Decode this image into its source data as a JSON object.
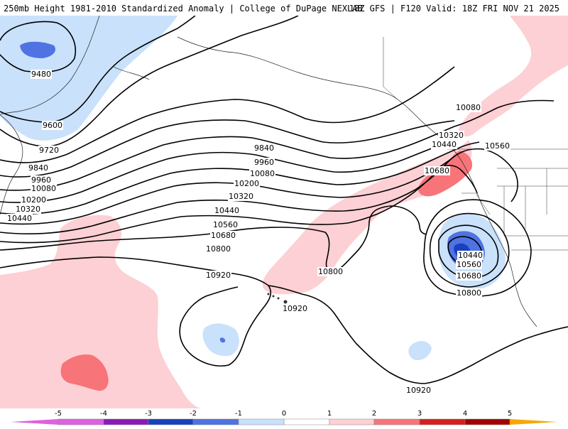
{
  "header": {
    "title_left": "250mb Height 1981-2010 Standardized Anomaly | College of DuPage NEXLAB",
    "title_right": "18Z GFS | F120 Valid: 18Z FRI NOV 21 2025"
  },
  "colors": {
    "anom_neg_5": "#e060e0",
    "anom_neg_4": "#8a1ab8",
    "anom_neg_3": "#1a3fbf",
    "anom_neg_2": "#4f73e3",
    "anom_neg_1": "#c9e1fb",
    "anom_0": "#ffffff",
    "anom_pos_1": "#fcd0d4",
    "anom_pos_2": "#f77478",
    "anom_pos_3": "#d81e1e",
    "anom_pos_4": "#a30000",
    "anom_pos_5": "#f6a800"
  },
  "contour_labels": [
    {
      "id": "9480-west",
      "text": "9480"
    },
    {
      "id": "9600-west",
      "text": "9600"
    },
    {
      "id": "9720-west",
      "text": "9720"
    },
    {
      "id": "9840-west",
      "text": "9840"
    },
    {
      "id": "9960-west",
      "text": "9960"
    },
    {
      "id": "10080-west",
      "text": "10080"
    },
    {
      "id": "10200-west",
      "text": "10200"
    },
    {
      "id": "10320-west",
      "text": "10320"
    },
    {
      "id": "10440-west",
      "text": "10440"
    },
    {
      "id": "9840-mid",
      "text": "9840"
    },
    {
      "id": "9960-mid",
      "text": "9960"
    },
    {
      "id": "10080-mid",
      "text": "10080"
    },
    {
      "id": "10200-mid",
      "text": "10200"
    },
    {
      "id": "10320-mid",
      "text": "10320"
    },
    {
      "id": "10440-mid",
      "text": "10440"
    },
    {
      "id": "10560-mid",
      "text": "10560"
    },
    {
      "id": "10680-mid",
      "text": "10680"
    },
    {
      "id": "10800-mid",
      "text": "10800"
    },
    {
      "id": "10920-mid",
      "text": "10920"
    },
    {
      "id": "10800-east",
      "text": "10800"
    },
    {
      "id": "10920-hawaii",
      "text": "10920"
    },
    {
      "id": "10920-south",
      "text": "10920"
    },
    {
      "id": "10080-coast",
      "text": "10080"
    },
    {
      "id": "10320-coast",
      "text": "10320"
    },
    {
      "id": "10440-coast",
      "text": "10440"
    },
    {
      "id": "10560-coast",
      "text": "10560"
    },
    {
      "id": "10680-coast",
      "text": "10680"
    },
    {
      "id": "10440-low",
      "text": "10440"
    },
    {
      "id": "10560-low",
      "text": "10560"
    },
    {
      "id": "10680-low",
      "text": "10680"
    },
    {
      "id": "10800-low",
      "text": "10800"
    }
  ],
  "colorbar": {
    "ticks": [
      "-5",
      "-4",
      "-3",
      "-2",
      "-1",
      "0",
      "1",
      "2",
      "3",
      "4",
      "5"
    ]
  }
}
